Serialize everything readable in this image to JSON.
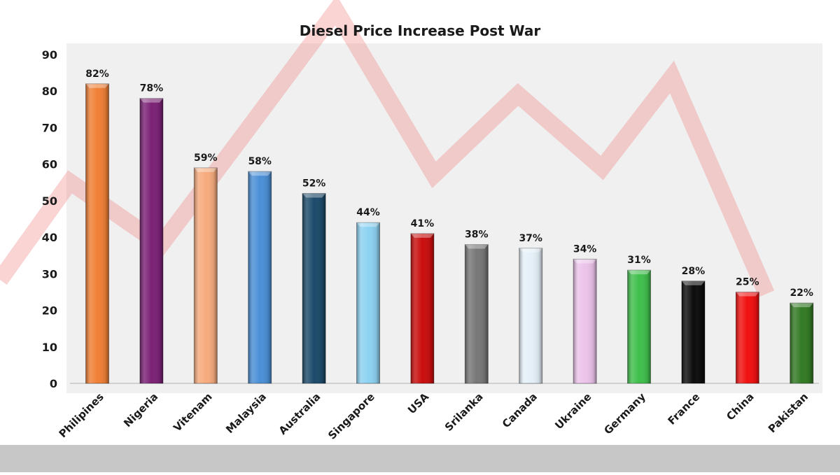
{
  "colors": {
    "bars": [
      "#f07f35",
      "#7b2175",
      "#f6ab7d",
      "#4a8fd6",
      "#1c4a6a",
      "#8dd2f2",
      "#c90d0d",
      "#777777",
      "#e4f0f8",
      "#ecc3ea",
      "#3fbf4c",
      "#0c0c0c",
      "#f01010",
      "#327a24"
    ],
    "background_trend": "#f08080",
    "bottom_bar": "#c7c7c7"
  },
  "chart_data": {
    "type": "bar",
    "title": "Diesel Price Increase Post War",
    "xlabel": "",
    "ylabel": "",
    "categories": [
      "Philipines",
      "Nigeria",
      "Vitenam",
      "Malaysia",
      "Australia",
      "Singapore",
      "USA",
      "Srilanka",
      "Canada",
      "Ukraine",
      "Germany",
      "France",
      "China",
      "Pakistan"
    ],
    "values": [
      82,
      78,
      59,
      58,
      52,
      44,
      41,
      38,
      37,
      34,
      31,
      28,
      25,
      22
    ],
    "data_labels": [
      "82%",
      "78%",
      "59%",
      "58%",
      "52%",
      "44%",
      "41%",
      "38%",
      "37%",
      "34%",
      "31%",
      "28%",
      "25%",
      "22%"
    ],
    "ylim": [
      0,
      90
    ],
    "yticks": [
      "0",
      "10",
      "20",
      "30",
      "40",
      "50",
      "60",
      "70",
      "80",
      "90"
    ],
    "grid": false,
    "legend": "none"
  }
}
